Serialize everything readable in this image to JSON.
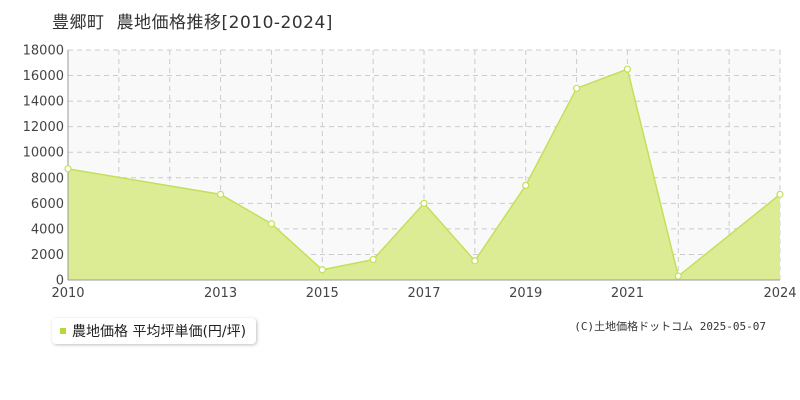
{
  "header": {
    "town": "豊郷町",
    "subtitle": "農地価格推移[2010-2024]"
  },
  "legend": {
    "label": "農地価格 平均坪単価(円/坪)"
  },
  "credit": "(C)土地価格ドットコム 2025-05-07",
  "colors": {
    "area_fill": "#dcec94",
    "line": "#c3e05a",
    "marker_fill": "#ffffff",
    "grid": "#cccccc",
    "plot_bg": "#f9f9f9",
    "legend_swatch": "#b5d83c"
  },
  "chart_data": {
    "type": "area",
    "x": [
      2010,
      2011,
      2012,
      2013,
      2014,
      2015,
      2016,
      2017,
      2018,
      2019,
      2020,
      2021,
      2022,
      2023,
      2024
    ],
    "series": [
      {
        "name": "農地価格 平均坪単価(円/坪)",
        "values": [
          8700,
          null,
          null,
          6700,
          4400,
          800,
          1600,
          6000,
          1500,
          7400,
          15000,
          16500,
          300,
          null,
          6700
        ]
      }
    ],
    "xticks": [
      2010,
      2013,
      2015,
      2017,
      2019,
      2021,
      2024
    ],
    "yticks": [
      0,
      2000,
      4000,
      6000,
      8000,
      10000,
      12000,
      14000,
      16000,
      18000
    ],
    "xlim": [
      2010,
      2024
    ],
    "ylim": [
      0,
      18000
    ],
    "grid": true,
    "legend_position": "bottom-left"
  }
}
